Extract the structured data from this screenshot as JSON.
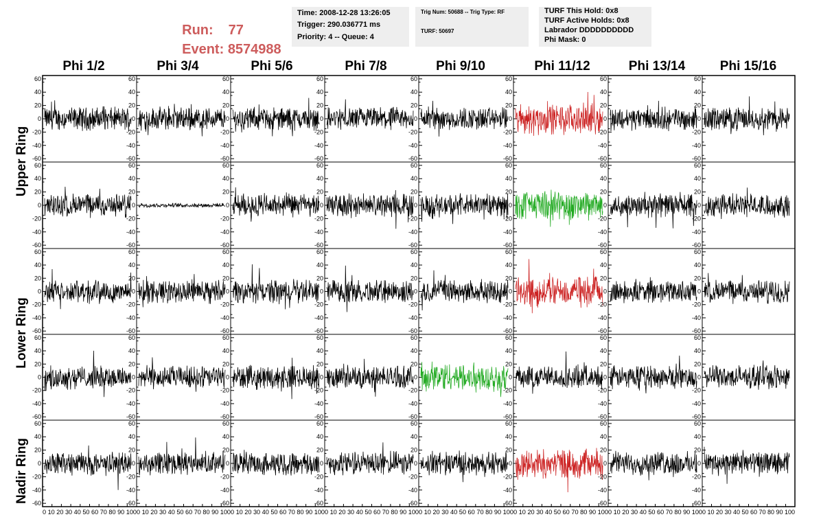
{
  "header": {
    "run_label": "Run:",
    "run_value": "77",
    "event_label": "Event:",
    "event_value": "8574988"
  },
  "info_time": {
    "time": "Time: 2008-12-28 13:26:05",
    "trigger": "Trigger: 290.036771 ms",
    "priority": "Priority: 4 -- Queue: 4"
  },
  "info_trig": {
    "trig": "Trig Num: 50688 -- Trig Type: RF",
    "turf": "TURF: 50697"
  },
  "info_turf": {
    "hold": "TURF This Hold: 0x8",
    "active": "TURF Active Holds: 0x8",
    "labrador": "Labrador DDDDDDDDDD",
    "phimask": "Phi Mask: 0"
  },
  "columns": [
    "Phi 1/2",
    "Phi 3/4",
    "Phi 5/6",
    "Phi 7/8",
    "Phi 9/10",
    "Phi 11/12",
    "Phi 13/14",
    "Phi 15/16"
  ],
  "rings": [
    "Upper Ring",
    "Lower Ring",
    "Nadir Ring"
  ],
  "axes": {
    "y_ticks": [
      "60",
      "40",
      "20",
      "0",
      "-20",
      "-40",
      "-60"
    ],
    "y_values": [
      60,
      40,
      20,
      0,
      -20,
      -40,
      -60
    ],
    "ylim": [
      -65,
      65
    ],
    "xlim": [
      0,
      100
    ],
    "x_tick_values": [
      0,
      10,
      20,
      30,
      40,
      50,
      60,
      70,
      80,
      90,
      100
    ],
    "x_tick_text": "0 10 20 30 40 50 60 70 80 90 100"
  },
  "colors": {
    "header_red": "#cd5c5c",
    "info_bg": "#eeeeee",
    "trace_default": "#000000",
    "trace_red": "#cc2222",
    "trace_green": "#22aa22"
  },
  "waveforms": {
    "rows": 5,
    "cols": 8,
    "highlight": [
      {
        "row": 0,
        "col": 5,
        "color": "red"
      },
      {
        "row": 1,
        "col": 5,
        "color": "green"
      },
      {
        "row": 2,
        "col": 5,
        "color": "red"
      },
      {
        "row": 3,
        "col": 4,
        "color": "green"
      },
      {
        "row": 4,
        "col": 5,
        "color": "red"
      }
    ],
    "quiet": [
      {
        "row": 1,
        "col": 1
      }
    ]
  }
}
